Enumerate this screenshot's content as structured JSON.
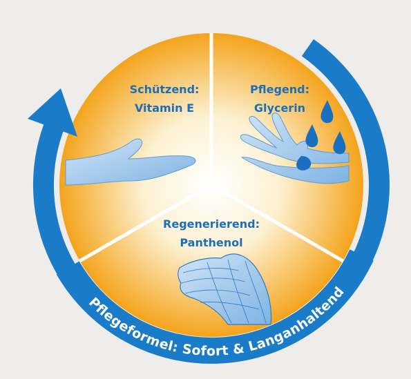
{
  "segments": [
    {
      "title": "Schützend:",
      "subtitle": "Vitamin E"
    },
    {
      "title": "Pflegend:",
      "subtitle": "Glycerin"
    },
    {
      "title": "Regenerierend:",
      "subtitle": "Panthenol"
    }
  ],
  "banner": "Pflegeformel: Sofort & Langanhaltend"
}
